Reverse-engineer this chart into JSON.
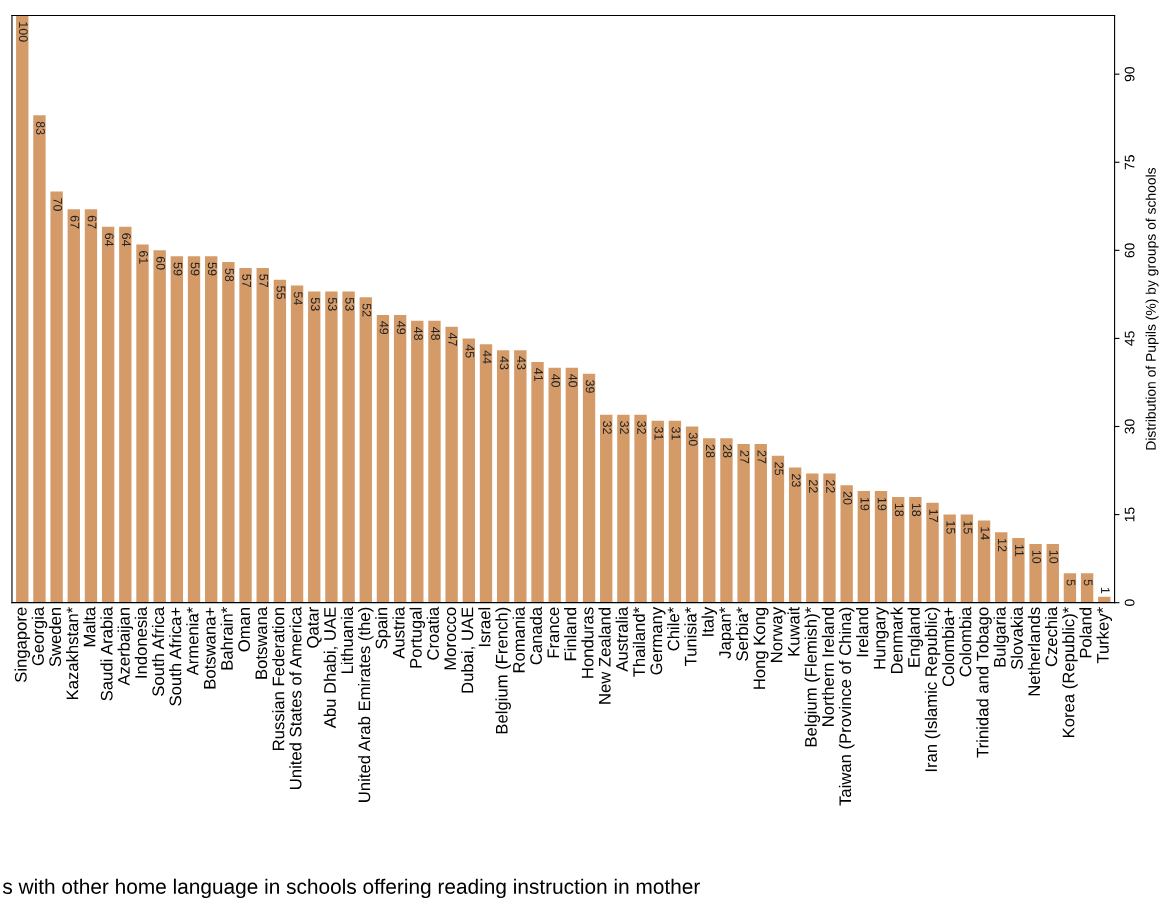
{
  "chart_data": {
    "type": "bar",
    "ylabel": "Distribution of Pupils (%) by groups of schools",
    "categories": [
      "Singapore",
      "Georgia",
      "Sweden",
      "Kazakhstan*",
      "Malta",
      "Saudi Arabia",
      "Azerbaijan",
      "Indonesia",
      "South Africa",
      "South Africa+",
      "Armenia*",
      "Botswana+",
      "Bahrain*",
      "Oman",
      "Botswana",
      "Russian Federation",
      "United States of America",
      "Qatar",
      "Abu Dhabi, UAE",
      "Lithuania",
      "United Arab Emirates (the)",
      "Spain",
      "Austria",
      "Portugal",
      "Croatia",
      "Morocco",
      "Dubai, UAE",
      "Israel",
      "Belgium (French)",
      "Romania",
      "Canada",
      "France",
      "Finland",
      "Honduras",
      "New Zealand",
      "Australia",
      "Thailand*",
      "Germany",
      "Chile*",
      "Tunisia*",
      "Italy",
      "Japan*",
      "Serbia*",
      "Hong Kong",
      "Norway",
      "Kuwait",
      "Belgium (Flemish)*",
      "Northern Ireland",
      "Taiwan (Province of China)",
      "Ireland",
      "Hungary",
      "Denmark",
      "England",
      "Iran (Islamic Republic)",
      "Colombia+",
      "Colombia",
      "Trinidad and Tobago",
      "Bulgaria",
      "Slovakia",
      "Netherlands",
      "Czechia",
      "Korea (Republic)*",
      "Poland",
      "Turkey*"
    ],
    "values": [
      100,
      83,
      70,
      67,
      67,
      64,
      64,
      61,
      60,
      59,
      59,
      59,
      58,
      57,
      57,
      55,
      54,
      53,
      53,
      53,
      52,
      49,
      49,
      48,
      48,
      47,
      45,
      44,
      43,
      43,
      41,
      40,
      40,
      39,
      32,
      32,
      32,
      31,
      31,
      30,
      28,
      28,
      27,
      27,
      25,
      23,
      22,
      22,
      20,
      19,
      19,
      18,
      18,
      17,
      15,
      15,
      14,
      12,
      11,
      10,
      10,
      5,
      5,
      1
    ],
    "color": "#d49b68",
    "ylim": [
      0,
      100
    ],
    "yticks": [
      0,
      15,
      30,
      45,
      60,
      75,
      90
    ],
    "data_labels": true,
    "grid": false,
    "legend": false,
    "annotations": [
      "s with other home language in schools offering reading instruction in mother"
    ]
  }
}
